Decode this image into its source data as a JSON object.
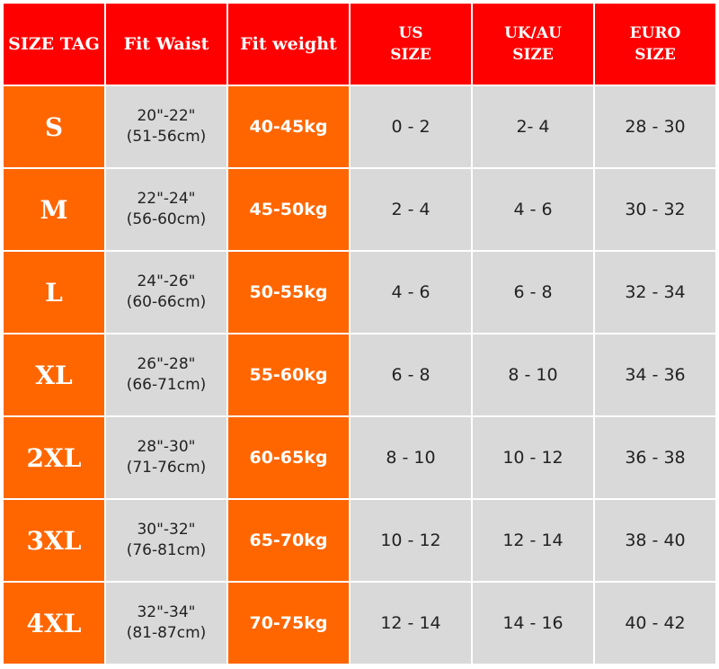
{
  "headers": [
    "SIZE TAG",
    "Fit Waist",
    "Fit weight",
    "US\nSIZE",
    "UK/AU\nSIZE",
    "EURO\nSIZE"
  ],
  "colors": {
    "header": "#ff0000",
    "accent": "#ff6600",
    "cell": "#d9d9d9"
  },
  "rows": [
    {
      "tag": "S",
      "waist_in": "20\"-22\"",
      "waist_cm": "(51-56cm)",
      "weight": "40-45kg",
      "us": "0 - 2",
      "uk": "2- 4",
      "euro": "28 - 30"
    },
    {
      "tag": "M",
      "waist_in": "22\"-24\"",
      "waist_cm": "(56-60cm)",
      "weight": "45-50kg",
      "us": "2 - 4",
      "uk": "4 - 6",
      "euro": "30 - 32"
    },
    {
      "tag": "L",
      "waist_in": "24\"-26\"",
      "waist_cm": "(60-66cm)",
      "weight": "50-55kg",
      "us": "4 - 6",
      "uk": "6 - 8",
      "euro": "32 - 34"
    },
    {
      "tag": "XL",
      "waist_in": "26\"-28\"",
      "waist_cm": "(66-71cm)",
      "weight": "55-60kg",
      "us": "6 - 8",
      "uk": "8 - 10",
      "euro": "34 - 36"
    },
    {
      "tag": "2XL",
      "waist_in": "28\"-30\"",
      "waist_cm": "(71-76cm)",
      "weight": "60-65kg",
      "us": "8 - 10",
      "uk": "10 - 12",
      "euro": "36 - 38"
    },
    {
      "tag": "3XL",
      "waist_in": "30\"-32\"",
      "waist_cm": "(76-81cm)",
      "weight": "65-70kg",
      "us": "10 - 12",
      "uk": "12 - 14",
      "euro": "38 - 40"
    },
    {
      "tag": "4XL",
      "waist_in": "32\"-34\"",
      "waist_cm": "(81-87cm)",
      "weight": "70-75kg",
      "us": "12 - 14",
      "uk": "14 - 16",
      "euro": "40 - 42"
    }
  ]
}
